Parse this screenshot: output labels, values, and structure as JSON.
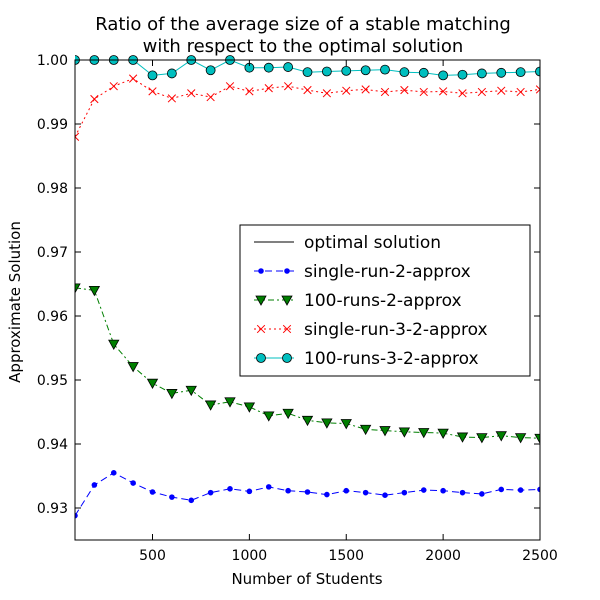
{
  "chart_data": {
    "type": "line",
    "title_line1": "Ratio of the average size of a stable matching",
    "title_line2": "with respect to the optimal solution",
    "xlabel": "Number of Students",
    "ylabel": "Approximate Solution",
    "xlim": [
      100,
      2500
    ],
    "ylim": [
      0.925,
      1.0
    ],
    "xticks": [
      500,
      1000,
      1500,
      2000,
      2500
    ],
    "yticks": [
      0.93,
      0.94,
      0.95,
      0.96,
      0.97,
      0.98,
      0.99,
      1.0
    ],
    "ytick_labels": [
      "0.93",
      "0.94",
      "0.95",
      "0.96",
      "0.97",
      "0.98",
      "0.99",
      "1.00"
    ],
    "grid": false,
    "legend_position": "center-right",
    "x": [
      100,
      200,
      300,
      400,
      500,
      600,
      700,
      800,
      900,
      1000,
      1100,
      1200,
      1300,
      1400,
      1500,
      1600,
      1700,
      1800,
      1900,
      2000,
      2100,
      2200,
      2300,
      2400,
      2500
    ],
    "series": [
      {
        "name": "optimal solution",
        "color": "#000000",
        "dash": "solid",
        "marker": "none",
        "values": [
          1.0,
          1.0,
          1.0,
          1.0,
          1.0,
          1.0,
          1.0,
          1.0,
          1.0,
          1.0,
          1.0,
          1.0,
          1.0,
          1.0,
          1.0,
          1.0,
          1.0,
          1.0,
          1.0,
          1.0,
          1.0,
          1.0,
          1.0,
          1.0,
          1.0
        ]
      },
      {
        "name": "single-run-2-approx",
        "color": "#0000ff",
        "dash": "dashed",
        "marker": "dot",
        "values": [
          0.9288,
          0.9336,
          0.9355,
          0.9339,
          0.9325,
          0.9317,
          0.9312,
          0.9324,
          0.933,
          0.9326,
          0.9333,
          0.9327,
          0.9325,
          0.9321,
          0.9327,
          0.9324,
          0.932,
          0.9324,
          0.9328,
          0.9327,
          0.9324,
          0.9322,
          0.9329,
          0.9328,
          0.9329
        ]
      },
      {
        "name": "100-runs-2-approx",
        "color": "#007f00",
        "dash": "dashdot",
        "marker": "triangle-down",
        "values": [
          0.9644,
          0.964,
          0.9556,
          0.9521,
          0.9495,
          0.9479,
          0.9484,
          0.9461,
          0.9466,
          0.9458,
          0.9444,
          0.9448,
          0.9437,
          0.9433,
          0.9432,
          0.9423,
          0.9421,
          0.9419,
          0.9418,
          0.9417,
          0.9411,
          0.941,
          0.9413,
          0.941,
          0.9409
        ]
      },
      {
        "name": "single-run-3-2-approx",
        "color": "#ff0000",
        "dash": "dotted",
        "marker": "x",
        "values": [
          0.988,
          0.9939,
          0.9959,
          0.9971,
          0.9951,
          0.994,
          0.9948,
          0.9942,
          0.9959,
          0.9951,
          0.9956,
          0.9959,
          0.9953,
          0.9948,
          0.9952,
          0.9954,
          0.995,
          0.9953,
          0.995,
          0.9951,
          0.9948,
          0.995,
          0.9952,
          0.995,
          0.9954
        ]
      },
      {
        "name": "100-runs-3-2-approx",
        "color": "#00bfbf",
        "dash": "solid",
        "marker": "circle",
        "values": [
          1.0,
          1.0,
          1.0,
          1.0,
          0.9976,
          0.9979,
          1.0,
          0.9984,
          1.0,
          0.9988,
          0.9988,
          0.9989,
          0.9981,
          0.9982,
          0.9983,
          0.9984,
          0.9985,
          0.9981,
          0.998,
          0.9976,
          0.9977,
          0.9979,
          0.998,
          0.9981,
          0.9982
        ]
      }
    ]
  }
}
